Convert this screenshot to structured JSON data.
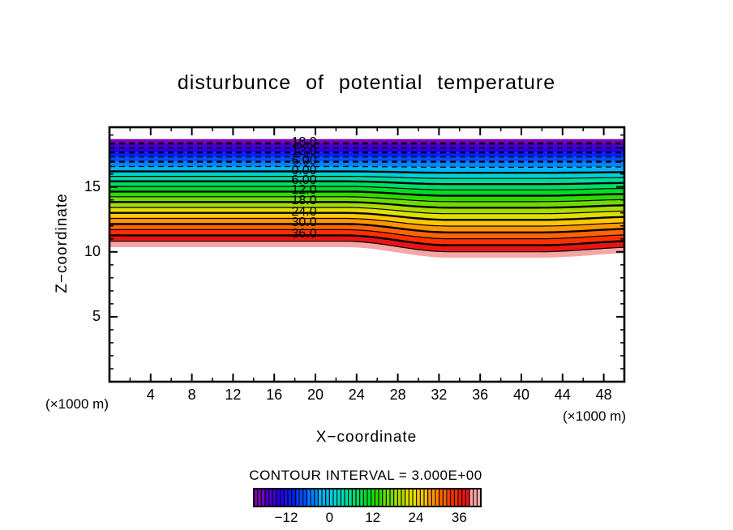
{
  "chart_data": {
    "type": "heatmap",
    "subtype": "filled-contour",
    "title": "disturbunce of potential temperature",
    "xlabel": "X−coordinate",
    "ylabel": "Z−coordinate",
    "axis_unit_left": "(×1000 m)",
    "axis_unit_right": "(×1000 m)",
    "xlim": [
      0,
      50
    ],
    "ylim": [
      0,
      19.6
    ],
    "x_major_ticks": [
      4,
      8,
      12,
      16,
      20,
      24,
      28,
      32,
      36,
      40,
      44,
      48
    ],
    "x_minor_step": 2,
    "y_major_ticks": [
      5,
      10,
      15
    ],
    "y_minor_step": 1,
    "grid": false,
    "contour_interval": 3.0,
    "contour_interval_text": "CONTOUR INTERVAL = 3.000E+00",
    "levels_min": -21,
    "levels_max": 42,
    "level_step": 3,
    "negative_style": "dashed",
    "fill_colors": [
      "#7A00B4",
      "#4600C8",
      "#2800E6",
      "#0020FF",
      "#0050FF",
      "#0082FF",
      "#00B4F0",
      "#00D2D2",
      "#00DCA0",
      "#00DC64",
      "#00DC28",
      "#30D800",
      "#6EDC00",
      "#AADC00",
      "#E0E000",
      "#FFC800",
      "#FF9600",
      "#FF6400",
      "#FF3000",
      "#E81414",
      "#F5A6A6"
    ],
    "labeled_levels": [
      {
        "value": -18,
        "text": "18.0"
      },
      {
        "value": -12,
        "text": "12.0"
      },
      {
        "value": -6,
        "text": "6.00"
      },
      {
        "value": 0,
        "text": "0.00"
      },
      {
        "value": 6,
        "text": "6.00"
      },
      {
        "value": 12,
        "text": "12.0"
      },
      {
        "value": 18,
        "text": "18.0"
      },
      {
        "value": 24,
        "text": "24.0"
      },
      {
        "value": 30,
        "text": "30.0"
      },
      {
        "value": 36,
        "text": "36.0"
      }
    ],
    "label_x": 18.9,
    "z_profile": {
      "z_at_0": 16.198,
      "slope_per_unit": -0.12541,
      "curve_per_unit2": -0.000321
    },
    "dip": {
      "x_start": 22.8,
      "x_full": 33.1,
      "x_full_end": 41.7,
      "x_end": 51.6,
      "max_z_drop": 0.81,
      "end_fraction": 0.55,
      "threshold_value": -6,
      "full_value": 39
    },
    "colorbar": {
      "range": [
        -21,
        42
      ],
      "n_stripes": 60,
      "tick_values": [
        -12,
        0,
        12,
        24,
        36
      ],
      "tick_labels": [
        "−12",
        "0",
        "12",
        "24",
        "36"
      ]
    }
  }
}
